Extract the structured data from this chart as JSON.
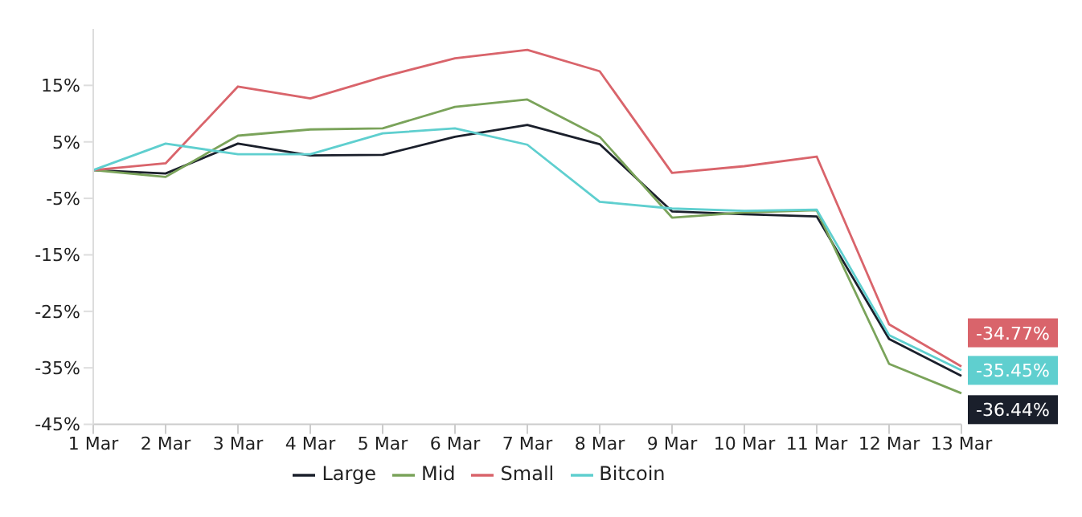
{
  "chart_data": {
    "type": "line",
    "categories": [
      "1 Mar",
      "2 Mar",
      "3 Mar",
      "4 Mar",
      "5 Mar",
      "6 Mar",
      "7 Mar",
      "8 Mar",
      "9 Mar",
      "10 Mar",
      "11 Mar",
      "12 Mar",
      "13 Mar"
    ],
    "series": [
      {
        "name": "Large",
        "color": "#1a1f2b",
        "values": [
          0,
          -0.6,
          4.7,
          2.6,
          2.7,
          5.9,
          8.0,
          4.6,
          -7.3,
          -7.8,
          -8.2,
          -29.9,
          -36.44
        ],
        "value_labels": [
          null,
          null,
          null,
          null,
          null,
          null,
          null,
          null,
          null,
          null,
          null,
          null,
          "-36.44%"
        ]
      },
      {
        "name": "Mid",
        "color": "#7aa35a",
        "values": [
          0,
          -1.2,
          6.1,
          7.2,
          7.4,
          11.2,
          12.5,
          5.9,
          -8.4,
          -7.5,
          -7.1,
          -34.3,
          -39.5
        ]
      },
      {
        "name": "Small",
        "color": "#d9646b",
        "values": [
          0,
          1.2,
          14.8,
          12.7,
          16.5,
          19.8,
          21.3,
          17.5,
          -0.5,
          0.7,
          2.4,
          -27.3,
          -34.77
        ],
        "value_labels": [
          null,
          null,
          null,
          null,
          null,
          null,
          null,
          null,
          null,
          null,
          null,
          null,
          "-34.77%"
        ]
      },
      {
        "name": "Bitcoin",
        "color": "#5fcfcf",
        "values": [
          0,
          4.7,
          2.8,
          2.8,
          6.5,
          7.4,
          4.5,
          -5.6,
          -6.8,
          -7.2,
          -7.0,
          -29.2,
          -35.45
        ],
        "value_labels": [
          null,
          null,
          null,
          null,
          null,
          null,
          null,
          null,
          null,
          null,
          null,
          null,
          "-35.45%"
        ]
      }
    ],
    "ylim": [
      -45,
      25
    ],
    "yticks": [
      {
        "value": -45,
        "label": "-45%"
      },
      {
        "value": -35,
        "label": "-35%"
      },
      {
        "value": -25,
        "label": "-25%"
      },
      {
        "value": -15,
        "label": "-15%"
      },
      {
        "value": -5,
        "label": "-5%"
      },
      {
        "value": 5,
        "label": "5%"
      },
      {
        "value": 15,
        "label": "15%"
      }
    ],
    "grid": false,
    "legend": "bottom",
    "marker": "none",
    "line_style": "solid"
  }
}
